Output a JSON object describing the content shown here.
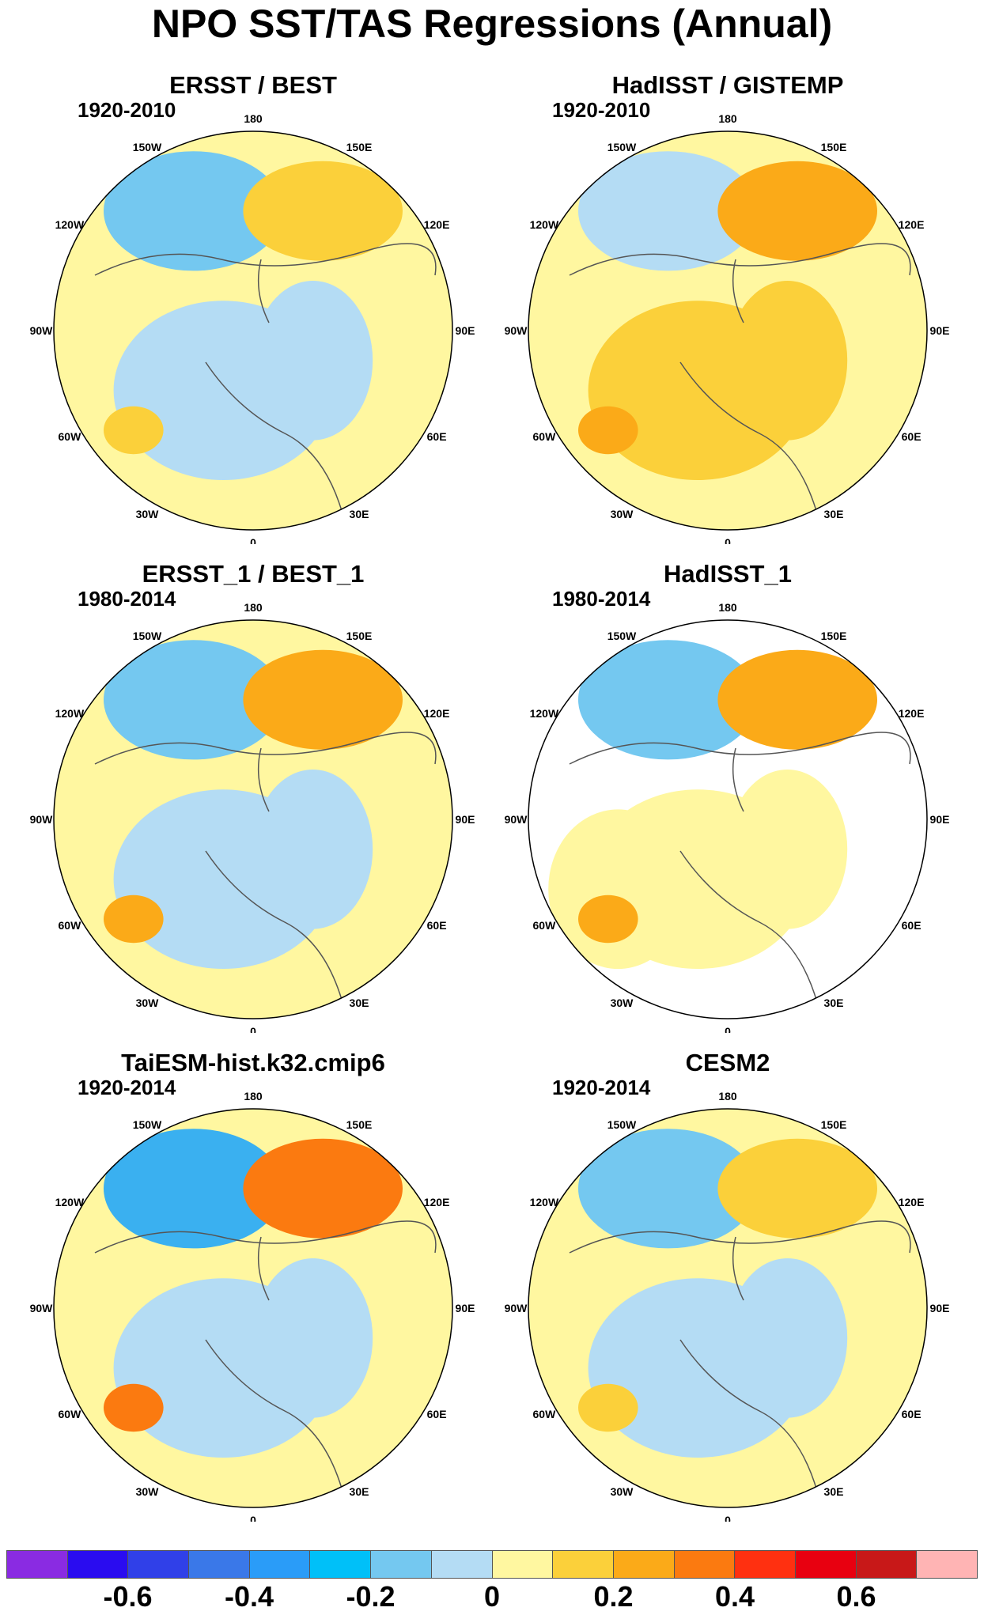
{
  "title": "NPO SST/TAS Regressions (Annual)",
  "longitude_labels": [
    "180",
    "150E",
    "120E",
    "90E",
    "60E",
    "30E",
    "0",
    "30W",
    "60W",
    "90W",
    "120W",
    "150W"
  ],
  "panels": [
    {
      "title": "ERSST / BEST",
      "period": "1920-2010",
      "palette": [
        "#fff7a0",
        "#b4dcf4",
        "#fbd03a",
        "#74c8f0"
      ]
    },
    {
      "title": "HadISST / GISTEMP",
      "period": "1920-2010",
      "palette": [
        "#fff7a0",
        "#fbd03a",
        "#fbaa18",
        "#b4dcf4"
      ]
    },
    {
      "title": "ERSST_1 / BEST_1",
      "period": "1980-2014",
      "palette": [
        "#fff7a0",
        "#b4dcf4",
        "#fbaa18",
        "#74c8f0"
      ]
    },
    {
      "title": "HadISST_1",
      "period": "1980-2014",
      "palette": [
        "#ffffff",
        "#fff7a0",
        "#fbaa18",
        "#74c8f0"
      ]
    },
    {
      "title": "TaiESM-hist.k32.cmip6",
      "period": "1920-2014",
      "palette": [
        "#fff7a0",
        "#b4dcf4",
        "#fb7a10",
        "#3ab0f0"
      ]
    },
    {
      "title": "CESM2",
      "period": "1920-2014",
      "palette": [
        "#fff7a0",
        "#b4dcf4",
        "#fbd03a",
        "#74c8f0"
      ]
    }
  ],
  "colorbar": {
    "colors": [
      "#8a2be2",
      "#2a0cf0",
      "#3040e8",
      "#3a78e8",
      "#2a9cf8",
      "#00c0f8",
      "#74c8f0",
      "#b4dcf4",
      "#fff7a0",
      "#fbd03a",
      "#fbaa18",
      "#fb7a10",
      "#ff3010",
      "#e80010",
      "#c81818",
      "#ffb4b4"
    ],
    "tick_labels": [
      "-0.6",
      "-0.4",
      "-0.2",
      "0",
      "0.2",
      "0.4",
      "0.6"
    ],
    "tick_values": [
      -0.6,
      -0.4,
      -0.2,
      0,
      0.2,
      0.4,
      0.6
    ]
  }
}
